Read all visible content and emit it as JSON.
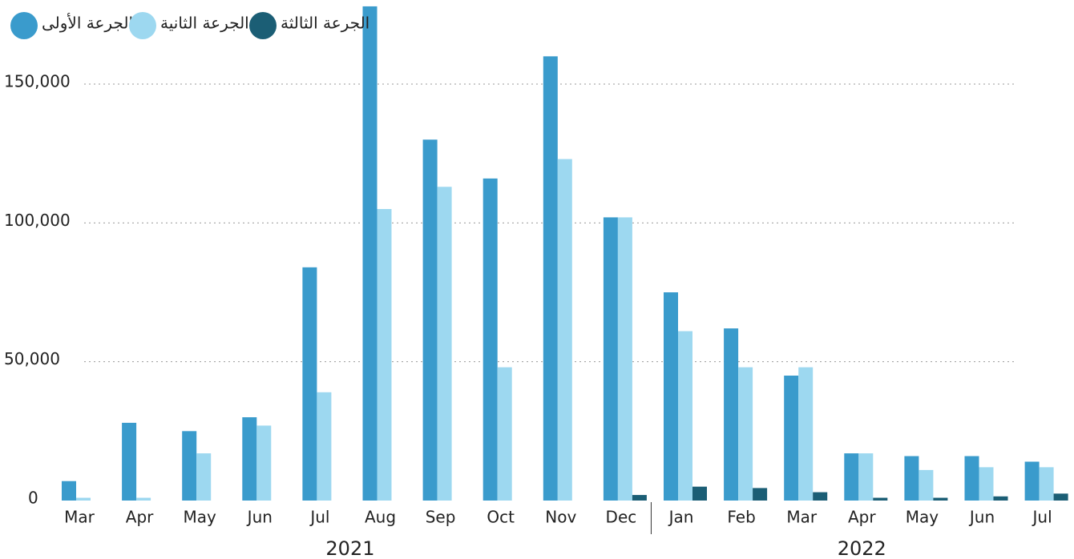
{
  "chart_data": {
    "type": "bar",
    "categories": [
      "Mar",
      "Apr",
      "May",
      "Jun",
      "Jul",
      "Aug",
      "Sep",
      "Oct",
      "Nov",
      "Dec",
      "Jan",
      "Feb",
      "Mar",
      "Apr",
      "May",
      "Jun",
      "Jul"
    ],
    "year_groups": [
      {
        "label": "2021",
        "count": 10
      },
      {
        "label": "2022",
        "count": 7
      }
    ],
    "series": [
      {
        "name": "الجرعة الأولى",
        "color": "#3a9bcc",
        "values": [
          7000,
          28000,
          25000,
          30000,
          84000,
          178000,
          130000,
          116000,
          160000,
          102000,
          75000,
          62000,
          45000,
          17000,
          16000,
          16000,
          14000
        ]
      },
      {
        "name": "الجرعة الثانية",
        "color": "#9dd8f0",
        "values": [
          1000,
          1000,
          17000,
          27000,
          39000,
          105000,
          113000,
          48000,
          123000,
          102000,
          61000,
          48000,
          48000,
          17000,
          11000,
          12000,
          12000
        ]
      },
      {
        "name": "الجرعة الثالثة",
        "color": "#1b5e75",
        "values": [
          null,
          null,
          null,
          null,
          null,
          null,
          null,
          null,
          null,
          2000,
          5000,
          4500,
          3000,
          1000,
          1000,
          1500,
          2500
        ]
      }
    ],
    "ylim": [
      0,
      180000
    ],
    "yticks": [
      0,
      {
        "value": 50000,
        "label": "50,000"
      },
      {
        "value": 100000,
        "label": "100,000"
      },
      {
        "value": 150000,
        "label": "150,000"
      }
    ],
    "grid": true,
    "legend": "top-left"
  }
}
